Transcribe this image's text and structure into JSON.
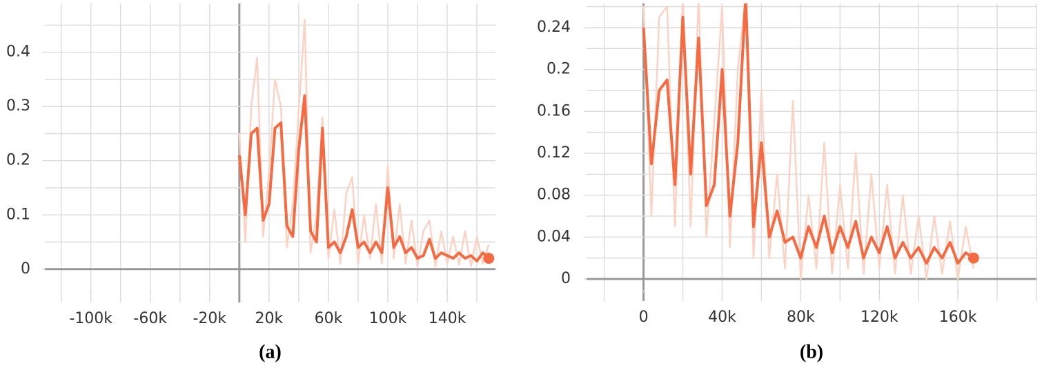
{
  "chart_data": [
    {
      "type": "line",
      "caption": "(a)",
      "x": [
        0,
        4000,
        8000,
        12000,
        16000,
        20000,
        24000,
        28000,
        32000,
        36000,
        40000,
        44000,
        48000,
        52000,
        56000,
        60000,
        64000,
        68000,
        72000,
        76000,
        80000,
        84000,
        88000,
        92000,
        96000,
        100000,
        104000,
        108000,
        112000,
        116000,
        120000,
        124000,
        128000,
        132000,
        136000,
        140000,
        144000,
        148000,
        152000,
        156000,
        160000,
        164000,
        168000
      ],
      "series": [
        {
          "color": "#fbd3c5",
          "values": [
            0.25,
            0.05,
            0.3,
            0.39,
            0.06,
            0.18,
            0.35,
            0.3,
            0.04,
            0.12,
            0.29,
            0.46,
            0.03,
            0.1,
            0.28,
            0.02,
            0.11,
            0.01,
            0.14,
            0.17,
            0.01,
            0.1,
            0.02,
            0.12,
            0.01,
            0.19,
            0.02,
            0.12,
            0.01,
            0.09,
            0.005,
            0.07,
            0.09,
            0.005,
            0.07,
            0.01,
            0.06,
            0.008,
            0.07,
            0.005,
            0.06,
            0.01,
            0.045
          ]
        },
        {
          "color": "#f26b43",
          "values": [
            0.21,
            0.1,
            0.25,
            0.26,
            0.09,
            0.12,
            0.26,
            0.27,
            0.08,
            0.06,
            0.22,
            0.32,
            0.07,
            0.05,
            0.26,
            0.04,
            0.05,
            0.03,
            0.06,
            0.11,
            0.04,
            0.05,
            0.03,
            0.05,
            0.03,
            0.15,
            0.04,
            0.06,
            0.03,
            0.04,
            0.02,
            0.025,
            0.055,
            0.02,
            0.03,
            0.025,
            0.02,
            0.03,
            0.02,
            0.025,
            0.015,
            0.03,
            0.02
          ]
        }
      ],
      "xlim": [
        -131000,
        172500
      ],
      "ylim": [
        -0.041,
        0.49
      ],
      "xticks": [
        {
          "value": -100000,
          "label": "-100k"
        },
        {
          "value": -60000,
          "label": "-60k"
        },
        {
          "value": -20000,
          "label": "-20k"
        },
        {
          "value": 20000,
          "label": "20k"
        },
        {
          "value": 60000,
          "label": "60k"
        },
        {
          "value": 100000,
          "label": "100k"
        },
        {
          "value": 140000,
          "label": "140k"
        }
      ],
      "yticks": [
        0,
        0.1,
        0.2,
        0.3,
        0.4
      ],
      "xgrid": [
        -120000,
        -100000,
        -80000,
        -60000,
        -40000,
        -20000,
        0,
        20000,
        40000,
        60000,
        80000,
        100000,
        120000,
        140000,
        160000
      ],
      "ygrid": [
        0,
        0.05,
        0.1,
        0.15,
        0.2,
        0.25,
        0.3,
        0.35,
        0.4,
        0.45
      ]
    },
    {
      "type": "line",
      "caption": "(b)",
      "x": [
        0,
        4000,
        8000,
        12000,
        16000,
        20000,
        24000,
        28000,
        32000,
        36000,
        40000,
        44000,
        48000,
        52000,
        56000,
        60000,
        64000,
        68000,
        72000,
        76000,
        80000,
        84000,
        88000,
        92000,
        96000,
        100000,
        104000,
        108000,
        112000,
        116000,
        120000,
        124000,
        128000,
        132000,
        136000,
        140000,
        144000,
        148000,
        152000,
        156000,
        160000,
        164000,
        168000
      ],
      "series": [
        {
          "color": "#fbd3c5",
          "values": [
            0.26,
            0.06,
            0.25,
            0.26,
            0.05,
            0.27,
            0.05,
            0.27,
            0.04,
            0.15,
            0.26,
            0.03,
            0.2,
            0.27,
            0.02,
            0.18,
            0.02,
            0.1,
            0.01,
            0.17,
            0,
            0.08,
            0.01,
            0.13,
            0.005,
            0.09,
            0.01,
            0.12,
            0.005,
            0.1,
            0.01,
            0.09,
            0.005,
            0.08,
            0.005,
            0.06,
            0,
            0.06,
            0.005,
            0.055,
            0,
            0.05,
            0.01
          ]
        },
        {
          "color": "#f26b43",
          "values": [
            0.24,
            0.11,
            0.18,
            0.19,
            0.09,
            0.25,
            0.1,
            0.23,
            0.07,
            0.09,
            0.2,
            0.06,
            0.13,
            0.27,
            0.05,
            0.13,
            0.04,
            0.065,
            0.035,
            0.04,
            0.02,
            0.05,
            0.03,
            0.06,
            0.025,
            0.05,
            0.03,
            0.055,
            0.02,
            0.04,
            0.025,
            0.05,
            0.02,
            0.035,
            0.02,
            0.03,
            0.015,
            0.03,
            0.02,
            0.035,
            0.015,
            0.025,
            0.02
          ]
        }
      ],
      "xlim": [
        -29000,
        200000
      ],
      "ylim": [
        -0.0105,
        0.263
      ],
      "xticks": [
        0,
        {
          "value": 40000,
          "label": "40k"
        },
        {
          "value": 80000,
          "label": "80k"
        },
        {
          "value": 120000,
          "label": "120k"
        },
        {
          "value": 160000,
          "label": "160k"
        }
      ],
      "yticks": [
        0,
        0.04,
        0.08,
        0.12,
        0.16,
        0.2,
        0.24
      ],
      "xgrid": [
        -20000,
        0,
        20000,
        40000,
        60000,
        80000,
        100000,
        120000,
        140000,
        160000,
        180000,
        200000
      ],
      "ygrid": [
        0,
        0.02,
        0.04,
        0.06,
        0.08,
        0.1,
        0.12,
        0.14,
        0.16,
        0.18,
        0.2,
        0.22,
        0.24,
        0.26
      ]
    }
  ]
}
